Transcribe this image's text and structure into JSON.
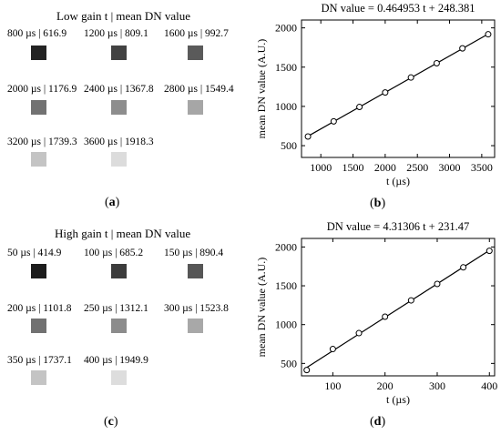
{
  "panels": {
    "a": {
      "title": "Low gain t | mean DN value",
      "letter": "a",
      "items": [
        {
          "label": "800 µs | 616.9",
          "gray": "#232323"
        },
        {
          "label": "1200 µs | 809.1",
          "gray": "#424242"
        },
        {
          "label": "1600 µs | 992.7",
          "gray": "#5a5a5a"
        },
        {
          "label": "2000 µs | 1176.9",
          "gray": "#727272"
        },
        {
          "label": "2400 µs | 1367.8",
          "gray": "#8d8d8d"
        },
        {
          "label": "2800 µs | 1549.4",
          "gray": "#a6a6a6"
        },
        {
          "label": "3200 µs | 1739.3",
          "gray": "#c4c4c4"
        },
        {
          "label": "3600 µs | 1918.3",
          "gray": "#dcdcdc"
        }
      ]
    },
    "c": {
      "title": "High gain t | mean DN value",
      "letter": "c",
      "items": [
        {
          "label": "50 µs | 414.9",
          "gray": "#1c1c1c"
        },
        {
          "label": "100 µs | 685.2",
          "gray": "#3c3c3c"
        },
        {
          "label": "150 µs | 890.4",
          "gray": "#565656"
        },
        {
          "label": "200 µs | 1101.8",
          "gray": "#717171"
        },
        {
          "label": "250 µs | 1312.1",
          "gray": "#8c8c8c"
        },
        {
          "label": "300 µs | 1523.8",
          "gray": "#a8a8a8"
        },
        {
          "label": "350 µs | 1737.1",
          "gray": "#c4c4c4"
        },
        {
          "label": "400 µs | 1949.9",
          "gray": "#dddddd"
        }
      ]
    }
  },
  "chart_data": [
    {
      "panel": "b",
      "letter": "b",
      "type": "scatter",
      "title": "DN value = 0.464953 t + 248.381",
      "xlabel": "t (µs)",
      "ylabel": "mean DN value (A.U.)",
      "xlim": [
        700,
        3700
      ],
      "ylim": [
        350,
        2100
      ],
      "xticks": [
        1000,
        1500,
        2000,
        2500,
        3000,
        3500
      ],
      "yticks": [
        500,
        1000,
        1500,
        2000
      ],
      "x": [
        800,
        1200,
        1600,
        2000,
        2400,
        2800,
        3200,
        3600
      ],
      "y": [
        616.9,
        809.1,
        992.7,
        1176.9,
        1367.8,
        1549.4,
        1739.3,
        1918.3
      ],
      "fit": {
        "slope": 0.464953,
        "intercept": 248.381
      },
      "grid": false
    },
    {
      "panel": "d",
      "letter": "d",
      "type": "scatter",
      "title": "DN value = 4.31306 t + 231.47",
      "xlabel": "t (µs)",
      "ylabel": "mean DN value (A.U.)",
      "xlim": [
        40,
        410
      ],
      "ylim": [
        340,
        2110
      ],
      "xticks": [
        100,
        200,
        300,
        400
      ],
      "yticks": [
        500,
        1000,
        1500,
        2000
      ],
      "x": [
        50,
        100,
        150,
        200,
        250,
        300,
        350,
        400
      ],
      "y": [
        414.9,
        685.2,
        890.4,
        1101.8,
        1312.1,
        1523.8,
        1737.1,
        1949.9
      ],
      "fit": {
        "slope": 4.31306,
        "intercept": 231.47
      },
      "grid": false
    }
  ]
}
